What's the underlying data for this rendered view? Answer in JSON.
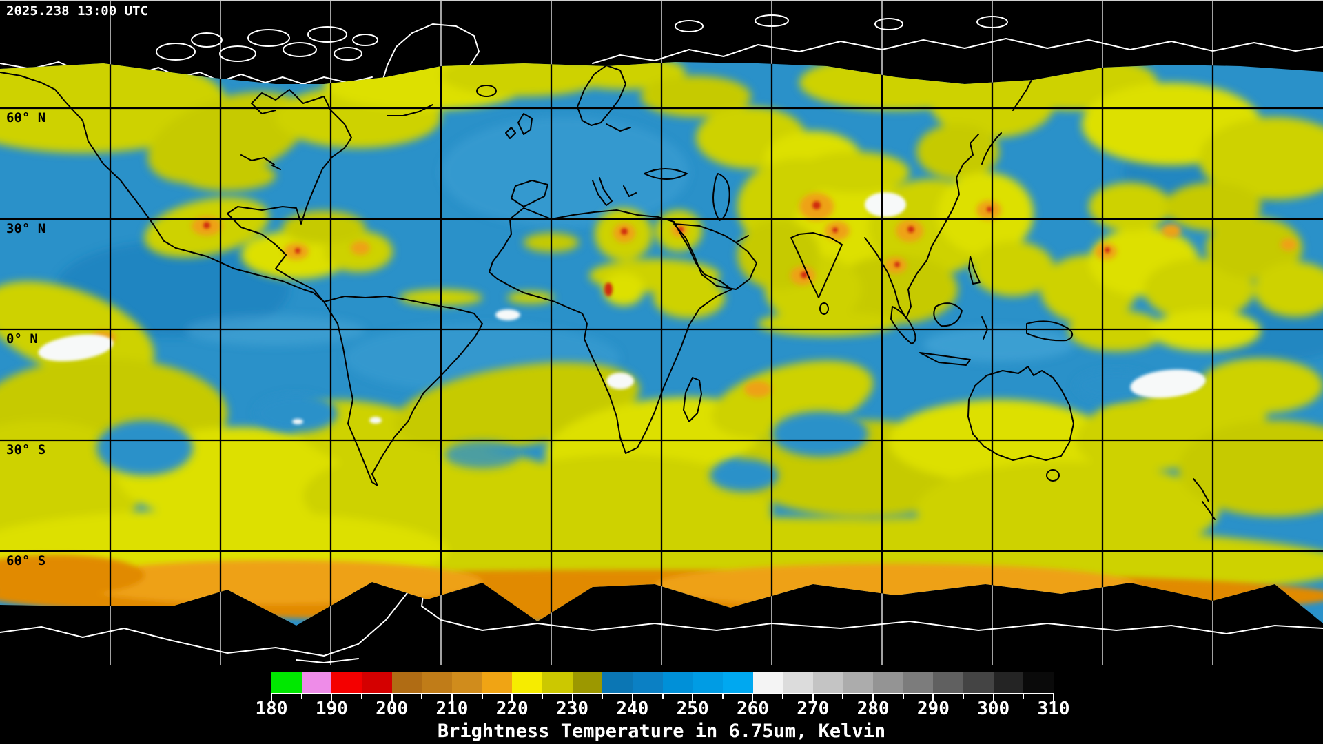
{
  "header": {
    "timestamp": "2025.238 13:00 UTC"
  },
  "map": {
    "latitude_labels": [
      "60° N",
      "30° N",
      "0° N",
      "30° S",
      "60° S"
    ],
    "grid": {
      "lat_step_deg": 30,
      "lon_step_deg": 30
    },
    "legend_colors": {
      "cold_cloud_green": "#00e400",
      "cold_cloud_pink": "#ee8ce8",
      "cold_cloud_red": "#e00000",
      "convection_orange": "#eea117",
      "moist_yellow": "#ced202",
      "dry_blue": "#2a91c9",
      "warm_gray_to_black": "#ffffff-#000000"
    }
  },
  "colorbar": {
    "title": "Brightness Temperature in 6.75um, Kelvin",
    "min": 180,
    "max": 310,
    "tick_step": 5,
    "label_step": 10,
    "tick_labels": [
      "180",
      "190",
      "200",
      "210",
      "220",
      "230",
      "240",
      "250",
      "260",
      "270",
      "280",
      "290",
      "300",
      "310"
    ],
    "segments": [
      {
        "from": 180,
        "to": 185,
        "color": "#00e800"
      },
      {
        "from": 185,
        "to": 190,
        "color": "#ee8ce8"
      },
      {
        "from": 190,
        "to": 195,
        "color": "#f40000"
      },
      {
        "from": 195,
        "to": 200,
        "color": "#d40000"
      },
      {
        "from": 200,
        "to": 205,
        "color": "#b06c14"
      },
      {
        "from": 205,
        "to": 210,
        "color": "#c07c18"
      },
      {
        "from": 210,
        "to": 215,
        "color": "#d08c1c"
      },
      {
        "from": 215,
        "to": 220,
        "color": "#f0a414"
      },
      {
        "from": 220,
        "to": 225,
        "color": "#f6ec00"
      },
      {
        "from": 225,
        "to": 230,
        "color": "#ccc800"
      },
      {
        "from": 230,
        "to": 235,
        "color": "#9c9800"
      },
      {
        "from": 235,
        "to": 240,
        "color": "#0b76b4"
      },
      {
        "from": 240,
        "to": 245,
        "color": "#0b80c4"
      },
      {
        "from": 245,
        "to": 250,
        "color": "#0090d8"
      },
      {
        "from": 250,
        "to": 255,
        "color": "#009ce4"
      },
      {
        "from": 255,
        "to": 260,
        "color": "#00a8f0"
      },
      {
        "from": 260,
        "to": 265,
        "color": "#f4f4f4"
      },
      {
        "from": 265,
        "to": 270,
        "color": "#dcdcdc"
      },
      {
        "from": 270,
        "to": 275,
        "color": "#c4c4c4"
      },
      {
        "from": 275,
        "to": 280,
        "color": "#acacac"
      },
      {
        "from": 280,
        "to": 285,
        "color": "#949494"
      },
      {
        "from": 285,
        "to": 290,
        "color": "#7c7c7c"
      },
      {
        "from": 290,
        "to": 295,
        "color": "#606060"
      },
      {
        "from": 295,
        "to": 300,
        "color": "#444444"
      },
      {
        "from": 300,
        "to": 305,
        "color": "#242424"
      },
      {
        "from": 305,
        "to": 310,
        "color": "#0a0a0a"
      }
    ]
  }
}
